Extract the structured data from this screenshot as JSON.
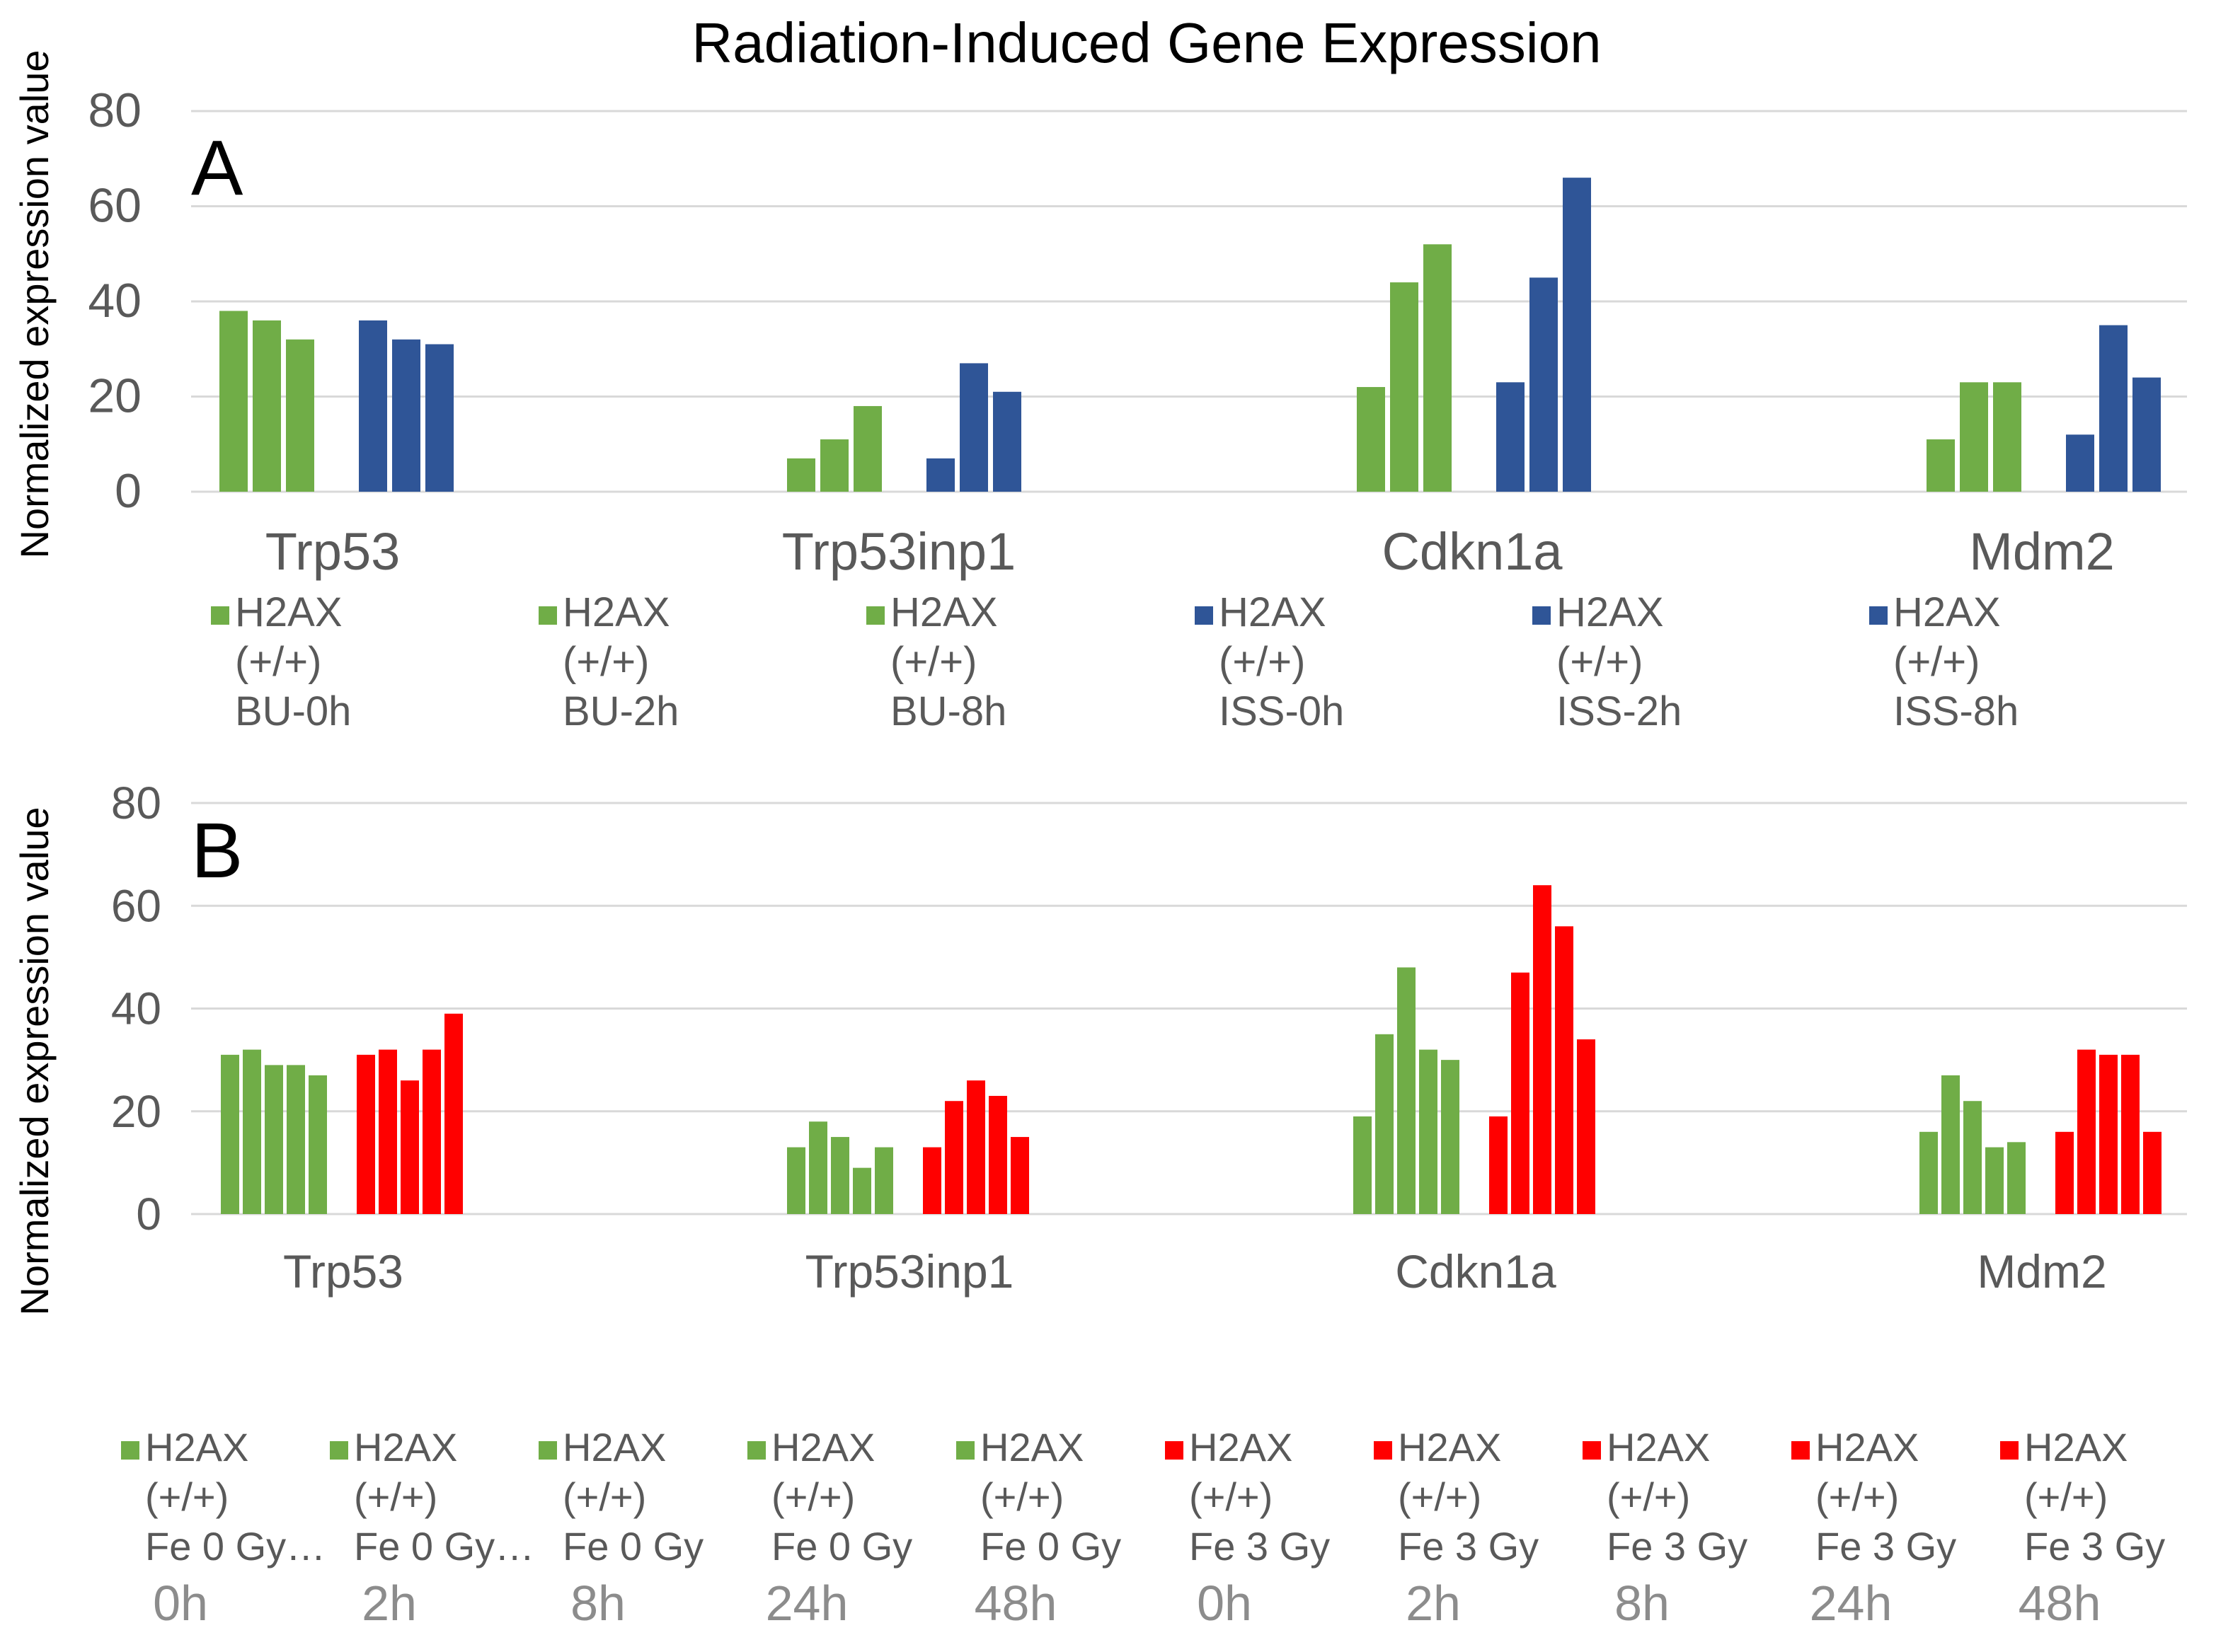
{
  "title": "Radiation-Induced Gene  Expression",
  "colors": {
    "green": "#70ad47",
    "blue": "#2f5597",
    "red": "#ff0000"
  },
  "chart_data": [
    {
      "type": "bar",
      "panel": "A",
      "categories": [
        "Trp53",
        "Trp53inp1",
        "Cdkn1a",
        "Mdm2"
      ],
      "ylabel": "Normalized expression value",
      "ylim": [
        0,
        80
      ],
      "yticks": [
        0,
        20,
        40,
        60,
        80
      ],
      "grid": true,
      "legend_position": "bottom",
      "series": [
        {
          "name": "H2AX (+/+) BU-0h",
          "lines": [
            "H2AX",
            "(+/+)",
            "BU-0h"
          ],
          "color": "#70ad47",
          "values": [
            38,
            7,
            22,
            11
          ]
        },
        {
          "name": "H2AX (+/+) BU-2h",
          "lines": [
            "H2AX",
            "(+/+)",
            "BU-2h"
          ],
          "color": "#70ad47",
          "values": [
            36,
            11,
            44,
            23
          ]
        },
        {
          "name": "H2AX (+/+) BU-8h",
          "lines": [
            "H2AX",
            "(+/+)",
            "BU-8h"
          ],
          "color": "#70ad47",
          "values": [
            32,
            18,
            52,
            23
          ]
        },
        {
          "name": "H2AX (+/+) ISS-0h",
          "lines": [
            "H2AX",
            "(+/+)",
            "ISS-0h"
          ],
          "color": "#2f5597",
          "values": [
            36,
            7,
            23,
            12
          ]
        },
        {
          "name": "H2AX (+/+) ISS-2h",
          "lines": [
            "H2AX",
            "(+/+)",
            "ISS-2h"
          ],
          "color": "#2f5597",
          "values": [
            32,
            27,
            45,
            35
          ]
        },
        {
          "name": "H2AX (+/+) ISS-8h",
          "lines": [
            "H2AX",
            "(+/+)",
            "ISS-8h"
          ],
          "color": "#2f5597",
          "values": [
            31,
            21,
            66,
            24
          ]
        }
      ]
    },
    {
      "type": "bar",
      "panel": "B",
      "categories": [
        "Trp53",
        "Trp53inp1",
        "Cdkn1a",
        "Mdm2"
      ],
      "ylabel": "Normalized expression value",
      "ylim": [
        0,
        80
      ],
      "yticks": [
        0,
        20,
        40,
        60,
        80
      ],
      "grid": true,
      "legend_position": "bottom",
      "series": [
        {
          "name": "H2AX (+/+) Fe 0 Gy… 0h",
          "lines": [
            "H2AX",
            "(+/+)",
            "Fe 0 Gy…"
          ],
          "time": "0h",
          "color": "#70ad47",
          "values": [
            31,
            13,
            19,
            16
          ]
        },
        {
          "name": "H2AX (+/+) Fe 0 Gy… 2h",
          "lines": [
            "H2AX",
            "(+/+)",
            "Fe 0 Gy…"
          ],
          "time": "2h",
          "color": "#70ad47",
          "values": [
            32,
            18,
            35,
            27
          ]
        },
        {
          "name": "H2AX (+/+) Fe 0 Gy 8h",
          "lines": [
            "H2AX",
            "(+/+)",
            "Fe 0 Gy"
          ],
          "time": "8h",
          "color": "#70ad47",
          "values": [
            29,
            15,
            48,
            22
          ]
        },
        {
          "name": "H2AX (+/+) Fe 0 Gy 24h",
          "lines": [
            "H2AX",
            "(+/+)",
            "Fe 0 Gy"
          ],
          "time": "24h",
          "color": "#70ad47",
          "values": [
            29,
            9,
            32,
            13
          ]
        },
        {
          "name": "H2AX (+/+) Fe 0 Gy 48h",
          "lines": [
            "H2AX",
            "(+/+)",
            "Fe 0 Gy"
          ],
          "time": "48h",
          "color": "#70ad47",
          "values": [
            27,
            13,
            30,
            14
          ]
        },
        {
          "name": "H2AX (+/+) Fe 3 Gy 0h",
          "lines": [
            "H2AX",
            "(+/+)",
            "Fe 3 Gy"
          ],
          "time": "0h",
          "color": "#ff0000",
          "values": [
            31,
            13,
            19,
            16
          ]
        },
        {
          "name": "H2AX (+/+) Fe 3 Gy 2h",
          "lines": [
            "H2AX",
            "(+/+)",
            "Fe 3 Gy"
          ],
          "time": "2h",
          "color": "#ff0000",
          "values": [
            32,
            22,
            47,
            32
          ]
        },
        {
          "name": "H2AX (+/+) Fe 3 Gy 8h",
          "lines": [
            "H2AX",
            "(+/+)",
            "Fe 3 Gy"
          ],
          "time": "8h",
          "color": "#ff0000",
          "values": [
            26,
            26,
            64,
            31
          ]
        },
        {
          "name": "H2AX (+/+) Fe 3 Gy 24h",
          "lines": [
            "H2AX",
            "(+/+)",
            "Fe 3 Gy"
          ],
          "time": "24h",
          "color": "#ff0000",
          "values": [
            32,
            23,
            56,
            31
          ]
        },
        {
          "name": "H2AX (+/+) Fe 3 Gy 48h",
          "lines": [
            "H2AX",
            "(+/+)",
            "Fe 3 Gy"
          ],
          "time": "48h",
          "color": "#ff0000",
          "values": [
            39,
            15,
            34,
            16
          ]
        }
      ]
    }
  ]
}
